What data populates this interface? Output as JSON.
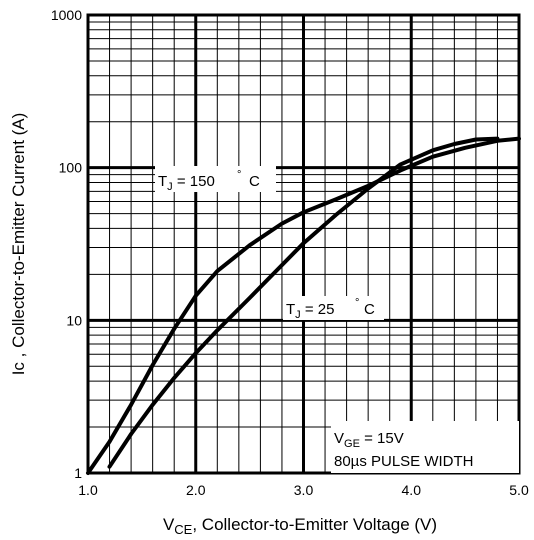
{
  "chart_data": {
    "type": "line",
    "xscale": "linear",
    "yscale": "log",
    "xlim": [
      1.0,
      5.0
    ],
    "ylim": [
      1,
      1000
    ],
    "grid": true,
    "xticks": [
      "1.0",
      "2.0",
      "3.0",
      "4.0",
      "5.0"
    ],
    "yticks": [
      "1",
      "10",
      "100",
      "1000"
    ],
    "xlabel": {
      "prefix": "V",
      "sub": "CE",
      "rest": ", Collector-to-Emitter Voltage (V)"
    },
    "ylabel": "Ic , Collector-to-Emitter Current (A)",
    "series": [
      {
        "name": "TJ = 150 °C",
        "x": [
          1.0,
          1.2,
          1.4,
          1.6,
          1.8,
          2.0,
          2.2,
          2.5,
          2.8,
          3.0,
          3.3,
          3.6,
          3.9,
          4.2,
          4.5,
          4.8,
          5.0
        ],
        "y": [
          1.0,
          1.6,
          2.8,
          5.1,
          8.8,
          14.5,
          21.0,
          31.0,
          43.0,
          51.0,
          62.0,
          76.0,
          96.0,
          118.0,
          135.0,
          150.0,
          155.0
        ]
      },
      {
        "name": "TJ = 25 °C",
        "x": [
          1.2,
          1.4,
          1.6,
          1.8,
          2.0,
          2.2,
          2.5,
          2.8,
          3.0,
          3.3,
          3.6,
          3.9,
          4.2,
          4.4,
          4.6,
          4.8
        ],
        "y": [
          1.1,
          1.8,
          2.8,
          4.2,
          6.1,
          8.6,
          14.0,
          23.0,
          32.0,
          49.0,
          73.0,
          105.0,
          130.0,
          143.0,
          153.0,
          155.0
        ]
      }
    ],
    "annotations": {
      "t150": {
        "prefix": "T",
        "sub": "J",
        "rest": " = 150",
        "unit": "C"
      },
      "t25": {
        "prefix": "T",
        "sub": "J",
        "rest": " = 25",
        "unit": "C"
      },
      "vge": {
        "prefix": "V",
        "sub": "GE",
        "rest": " = 15V"
      },
      "pulse": "80µs PULSE WIDTH"
    }
  }
}
